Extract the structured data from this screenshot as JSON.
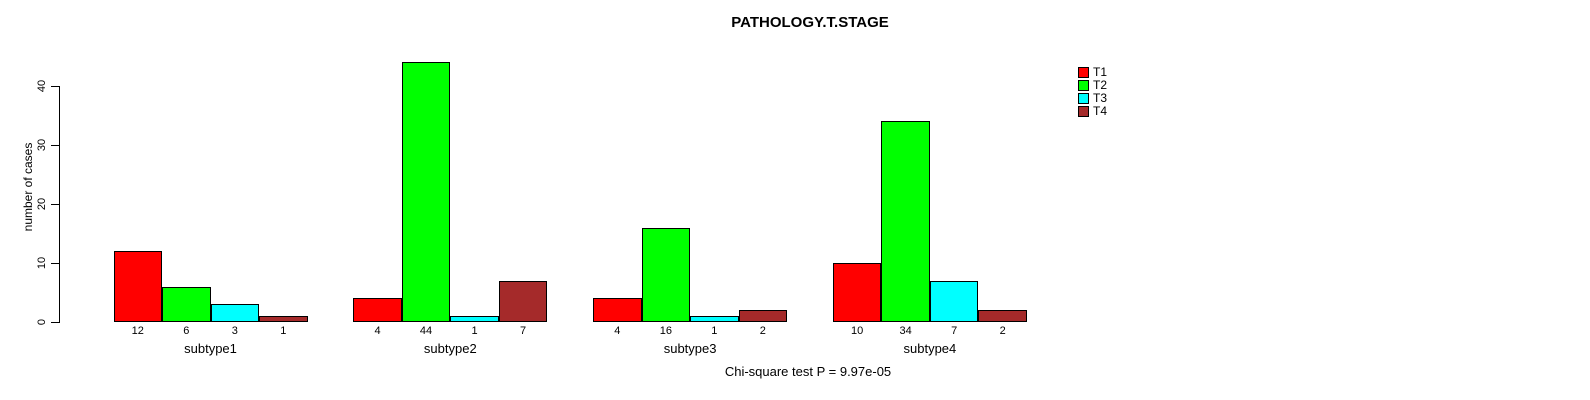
{
  "title": "PATHOLOGY.T.STAGE",
  "ylabel": "number of cases",
  "annotation": "Chi-square test P = 9.97e-05",
  "chart_data": {
    "type": "bar",
    "grouped": true,
    "title": "PATHOLOGY.T.STAGE",
    "xlabel": "",
    "ylabel": "number of cases",
    "categories": [
      "subtype1",
      "subtype2",
      "subtype3",
      "subtype4"
    ],
    "series": [
      {
        "name": "T1",
        "color": "#ff0000",
        "values": [
          12,
          4,
          4,
          10
        ]
      },
      {
        "name": "T2",
        "color": "#00ff00",
        "values": [
          6,
          44,
          16,
          34
        ]
      },
      {
        "name": "T3",
        "color": "#00ffff",
        "values": [
          3,
          1,
          1,
          7
        ]
      },
      {
        "name": "T4",
        "color": "#a52a2a",
        "values": [
          1,
          7,
          2,
          2
        ]
      }
    ],
    "yticks": [
      0,
      10,
      20,
      30,
      40
    ],
    "ylim": [
      0,
      44
    ],
    "bar_labels": true,
    "legend_position": "top-right",
    "grid": false,
    "background": "#ffffff",
    "annotation": "Chi-square test P = 9.97e-05"
  }
}
